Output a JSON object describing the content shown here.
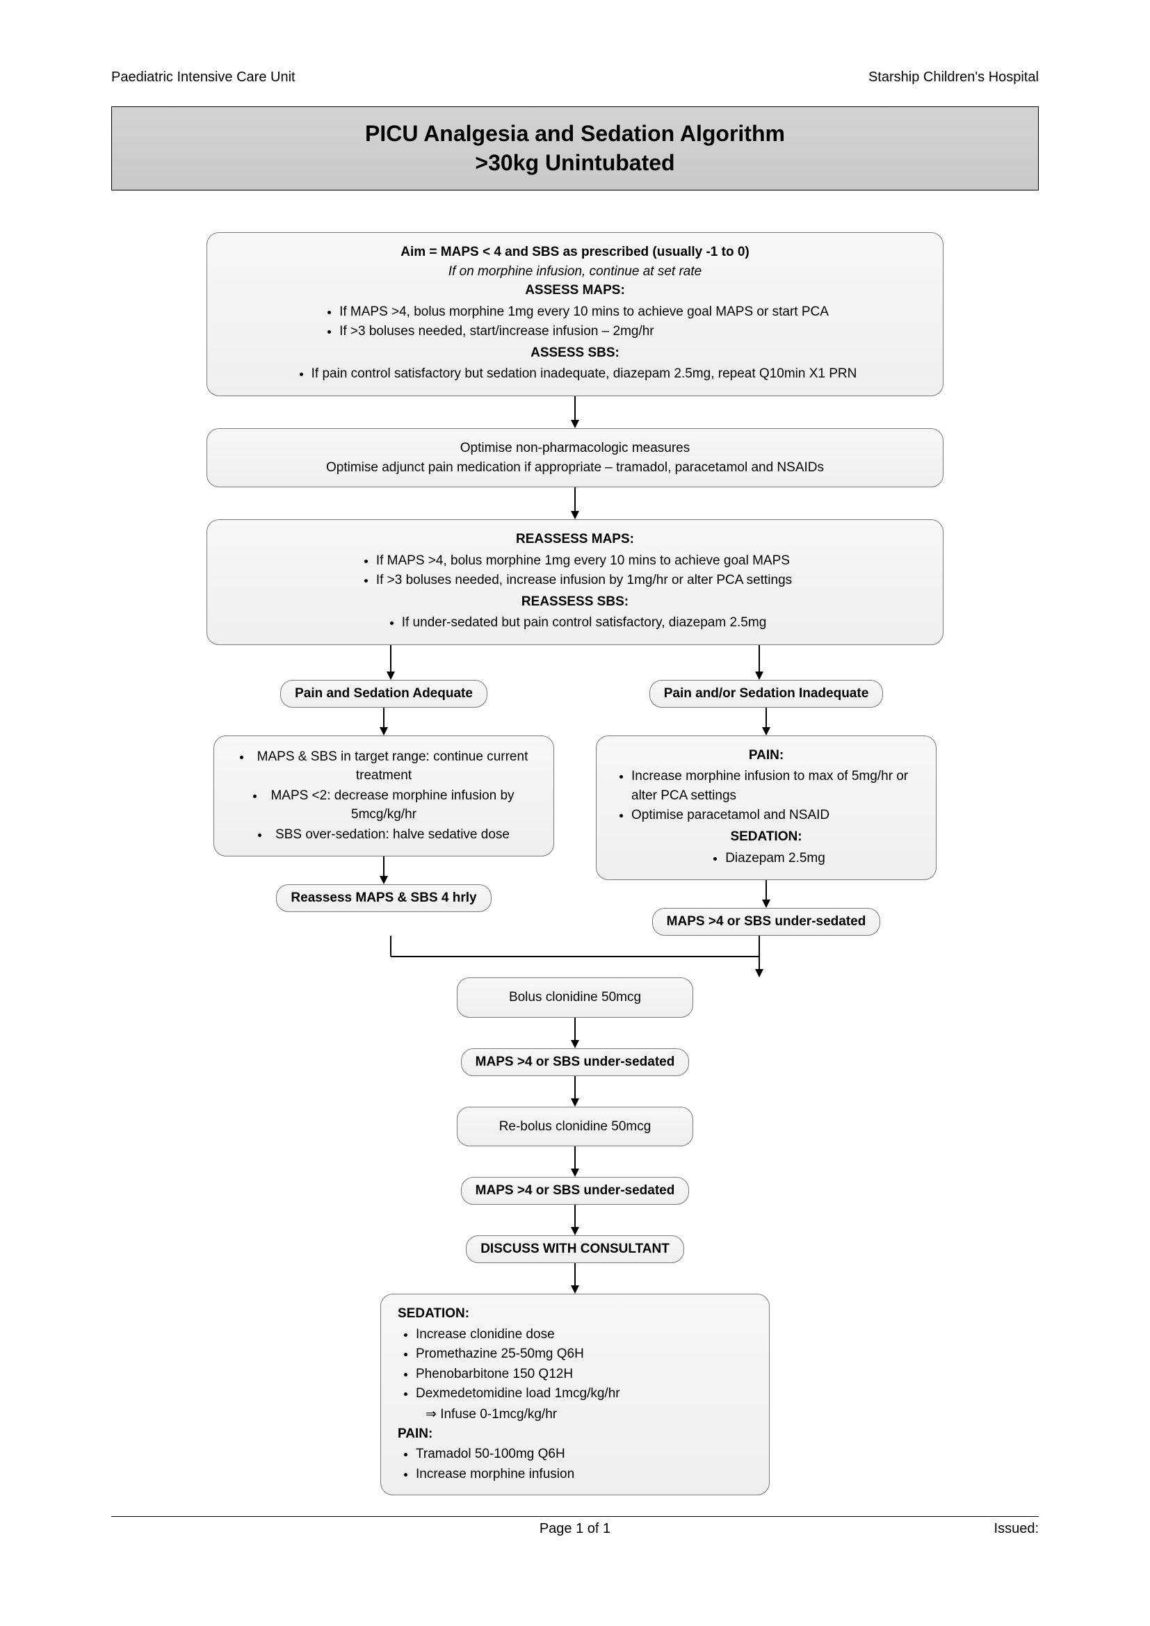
{
  "header": {
    "left": "Paediatric Intensive Care Unit",
    "right": "Starship Children's Hospital"
  },
  "title_line1": "PICU Analgesia and Sedation Algorithm",
  "title_line2": ">30kg Unintubated",
  "colors": {
    "node_bg_top": "#f7f7f7",
    "node_bg_bottom": "#efefef",
    "node_border": "#7a7a7a",
    "band_bg": "#cfcfcf",
    "arrow": "#000000",
    "text": "#000000"
  },
  "flowchart": {
    "type": "flowchart",
    "nodes": [
      {
        "id": "n1",
        "width": "wide",
        "lines": [
          {
            "t": "Aim = MAPS < 4 and SBS as prescribed (usually -1 to 0)",
            "cls": "bold center"
          },
          {
            "t": "If on morphine infusion, continue at set rate",
            "cls": "ital center"
          },
          {
            "t": "ASSESS MAPS:",
            "cls": "bold center"
          }
        ],
        "bullets1": [
          "If MAPS >4, bolus morphine 1mg every 10 mins to achieve goal MAPS or start PCA",
          "If >3 boluses needed, start/increase infusion – 2mg/hr"
        ],
        "mid": {
          "t": "ASSESS SBS:",
          "cls": "bold center"
        },
        "bullets2": [
          "If pain control satisfactory but sedation inadequate, diazepam 2.5mg, repeat Q10min X1 PRN"
        ]
      },
      {
        "id": "n2",
        "width": "wide",
        "lines": [
          {
            "t": "Optimise non-pharmacologic measures",
            "cls": "center"
          },
          {
            "t": "Optimise adjunct pain medication if appropriate – tramadol, paracetamol and NSAIDs",
            "cls": "center"
          }
        ]
      },
      {
        "id": "n3",
        "width": "wide",
        "lines": [
          {
            "t": "REASSESS MAPS:",
            "cls": "bold center"
          }
        ],
        "bullets1": [
          "If MAPS >4, bolus morphine 1mg every 10 mins to achieve goal MAPS",
          "If >3 boluses needed, increase infusion by 1mg/hr or alter PCA settings"
        ],
        "mid": {
          "t": "REASSESS SBS:",
          "cls": "bold center"
        },
        "bullets2": [
          "If under-sedated but pain control satisfactory, diazepam 2.5mg"
        ]
      }
    ],
    "branch_left_label": "Pain and Sedation Adequate",
    "branch_right_label": "Pain and/or Sedation Inadequate",
    "left_box_bullets": [
      "MAPS & SBS in target range: continue current treatment",
      "MAPS <2: decrease morphine infusion by 5mcg/kg/hr",
      "SBS over-sedation: halve sedative dose"
    ],
    "left_reassess": "Reassess MAPS & SBS 4 hrly",
    "right_box": {
      "top": "PAIN:",
      "bullets1": [
        "Increase morphine infusion to max of 5mg/hr or alter PCA settings",
        "Optimise paracetamol and NSAID"
      ],
      "mid": "SEDATION:",
      "bullets2": [
        "Diazepam 2.5mg"
      ]
    },
    "chain": [
      {
        "text": "MAPS >4 or SBS under-sedated",
        "bold": true
      },
      {
        "text": "Bolus clonidine 50mcg",
        "bold": false
      },
      {
        "text": "MAPS >4 or SBS under-sedated",
        "bold": true
      },
      {
        "text": "Re-bolus clonidine 50mcg",
        "bold": false
      },
      {
        "text": "MAPS >4 or SBS under-sedated",
        "bold": true
      },
      {
        "text": "DISCUSS WITH CONSULTANT",
        "bold": true
      }
    ],
    "final": {
      "sed_label": "SEDATION:",
      "sed_bullets": [
        "Increase clonidine dose",
        "Promethazine 25-50mg Q6H",
        "Phenobarbitone 150 Q12H",
        "Dexmedetomidine load 1mcg/kg/hr"
      ],
      "sed_sub": "⇒ Infuse 0-1mcg/kg/hr",
      "pain_label": "PAIN:",
      "pain_bullets": [
        "Tramadol 50-100mg Q6H",
        "Increase morphine infusion"
      ]
    }
  },
  "footer": {
    "center": "Page 1 of 1",
    "right": "Issued:"
  }
}
